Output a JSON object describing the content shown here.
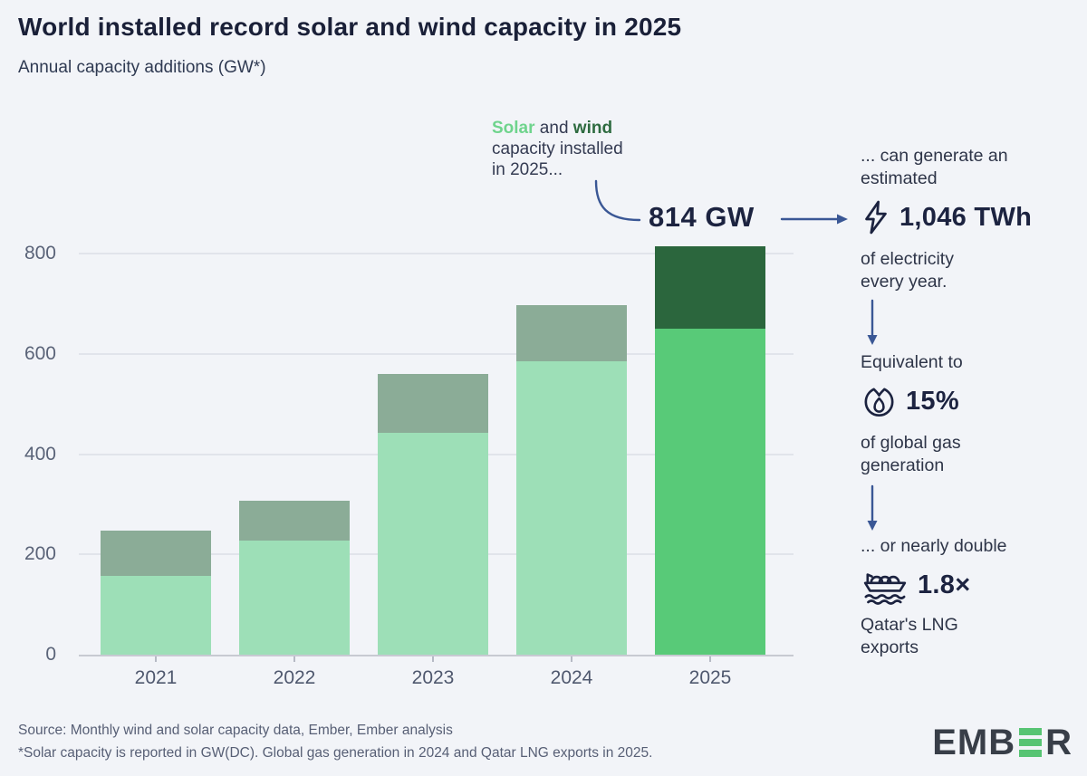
{
  "header": {
    "title": "World installed record solar and wind capacity in 2025",
    "subtitle": "Annual capacity additions (GW*)"
  },
  "annotation": {
    "solar_word": "Solar",
    "and_word": " and ",
    "wind_word": "wind",
    "line2": "capacity installed",
    "line3": "in 2025...",
    "total_label": "814 GW"
  },
  "chart_data": {
    "type": "bar",
    "stacked": true,
    "title": "World installed record solar and wind capacity in 2025",
    "ylabel": "Annual capacity additions (GW*)",
    "categories": [
      "2021",
      "2022",
      "2023",
      "2024",
      "2025"
    ],
    "series": [
      {
        "name": "Solar",
        "values": [
          158,
          227,
          443,
          585,
          650
        ]
      },
      {
        "name": "Wind",
        "values": [
          90,
          80,
          117,
          112,
          164
        ]
      }
    ],
    "totals": [
      248,
      307,
      560,
      697,
      814
    ],
    "ylim": [
      0,
      800
    ],
    "yticks": [
      0,
      200,
      400,
      600,
      800
    ],
    "grid": true,
    "legend": "none",
    "highlight_index": 4,
    "colors": {
      "solar": "#9DDFB7",
      "wind": "#8BAC97",
      "solar_highlight": "#58CA78",
      "wind_highlight": "#2B663D",
      "accent_arrow": "#3A5795",
      "text_dark": "#1C2340"
    }
  },
  "panel": {
    "p1": "... can generate an\nestimated",
    "stat1": {
      "icon": "lightning-bolt-icon",
      "value": "1,046 TWh"
    },
    "p2": "of electricity\nevery year.",
    "p3": "Equivalent to",
    "stat2": {
      "icon": "gas-flame-icon",
      "value": "15%"
    },
    "p4": "of global gas\ngeneration",
    "p5": "... or nearly double",
    "stat3": {
      "icon": "lng-tanker-icon",
      "value": "1.8×"
    },
    "p6": "Qatar's LNG\nexports"
  },
  "footer": {
    "source": "Source: Monthly wind and solar capacity data, Ember, Ember analysis",
    "note": "*Solar capacity is reported in GW(DC). Global gas generation in 2024 and Qatar LNG exports in 2025."
  },
  "logo": {
    "part1": "EMB",
    "part2": "R",
    "green_e": "green-bars-E"
  }
}
